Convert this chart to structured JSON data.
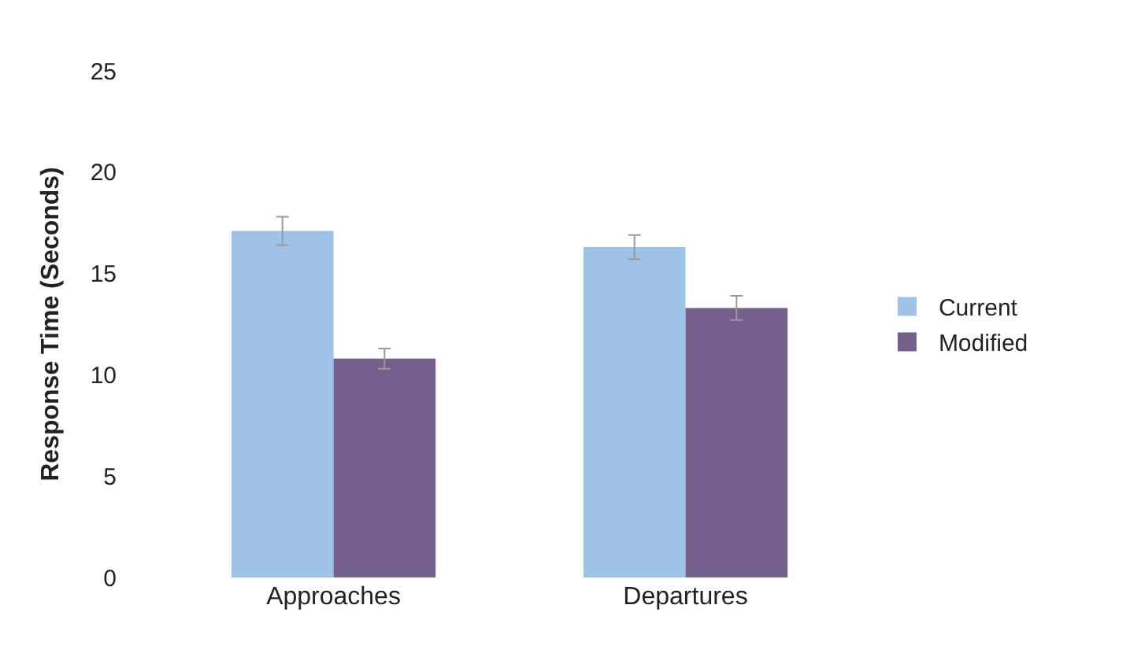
{
  "chart_data": {
    "type": "bar",
    "ylabel": "Response Time (Seconds)",
    "categories": [
      "Approaches",
      "Departures"
    ],
    "series": [
      {
        "name": "Current",
        "color": "#9fc2e7",
        "values": [
          17.1,
          16.3
        ],
        "errors": [
          0.7,
          0.6
        ]
      },
      {
        "name": "Modified",
        "color": "#755f8d",
        "values": [
          10.8,
          13.3
        ],
        "errors": [
          0.5,
          0.6
        ]
      }
    ],
    "ylim": [
      0,
      25
    ],
    "yticks": [
      0,
      5,
      10,
      15,
      20,
      25
    ],
    "legend": "right"
  }
}
